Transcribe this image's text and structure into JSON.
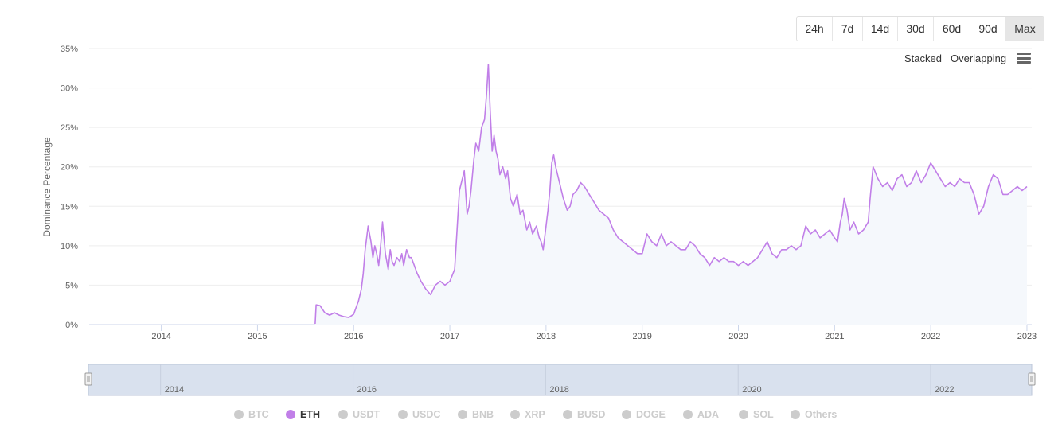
{
  "range_buttons": [
    "24h",
    "7d",
    "14d",
    "30d",
    "60d",
    "90d",
    "Max"
  ],
  "active_range": "Max",
  "mode_options": {
    "stacked": "Stacked",
    "overlapping": "Overlapping"
  },
  "menu_icon": "hamburger-menu-icon",
  "colors": {
    "eth": "#c17fe8",
    "area_fill": "#f5f8fc",
    "grid": "#eeeeee",
    "navigator": "#d9e1ee",
    "legend_off": "#cccccc"
  },
  "legend": [
    {
      "label": "BTC",
      "active": false
    },
    {
      "label": "ETH",
      "active": true
    },
    {
      "label": "USDT",
      "active": false
    },
    {
      "label": "USDC",
      "active": false
    },
    {
      "label": "BNB",
      "active": false
    },
    {
      "label": "XRP",
      "active": false
    },
    {
      "label": "BUSD",
      "active": false
    },
    {
      "label": "DOGE",
      "active": false
    },
    {
      "label": "ADA",
      "active": false
    },
    {
      "label": "SOL",
      "active": false
    },
    {
      "label": "Others",
      "active": false
    }
  ],
  "chart_data": {
    "type": "area",
    "title": "",
    "xlabel": "",
    "ylabel": "Dominance Percentage",
    "ylim": [
      0,
      35
    ],
    "y_ticks": [
      0,
      5,
      10,
      15,
      20,
      25,
      30,
      35
    ],
    "y_tick_labels": [
      "0%",
      "5%",
      "10%",
      "15%",
      "20%",
      "25%",
      "30%",
      "35%"
    ],
    "xlim": [
      2013.25,
      2023.05
    ],
    "x_ticks": [
      2014,
      2015,
      2016,
      2017,
      2018,
      2019,
      2020,
      2021,
      2022,
      2023
    ],
    "x_tick_labels": [
      "2014",
      "2015",
      "2016",
      "2017",
      "2018",
      "2019",
      "2020",
      "2021",
      "2022",
      "2023"
    ],
    "grid": true,
    "navigator_labels": [
      {
        "x": 2014,
        "label": "2014"
      },
      {
        "x": 2016,
        "label": "2016"
      },
      {
        "x": 2018,
        "label": "2018"
      },
      {
        "x": 2020,
        "label": "2020"
      },
      {
        "x": 2022,
        "label": "2022"
      }
    ],
    "series": [
      {
        "name": "ETH",
        "x": [
          2015.6,
          2015.61,
          2015.65,
          2015.7,
          2015.75,
          2015.8,
          2015.85,
          2015.9,
          2015.95,
          2016.0,
          2016.05,
          2016.08,
          2016.1,
          2016.12,
          2016.15,
          2016.18,
          2016.2,
          2016.22,
          2016.24,
          2016.26,
          2016.28,
          2016.3,
          2016.33,
          2016.36,
          2016.38,
          2016.4,
          2016.42,
          2016.45,
          2016.48,
          2016.5,
          2016.52,
          2016.55,
          2016.58,
          2016.6,
          2016.63,
          2016.66,
          2016.7,
          2016.75,
          2016.8,
          2016.85,
          2016.9,
          2016.95,
          2017.0,
          2017.05,
          2017.1,
          2017.15,
          2017.18,
          2017.2,
          2017.22,
          2017.25,
          2017.27,
          2017.3,
          2017.33,
          2017.36,
          2017.38,
          2017.4,
          2017.42,
          2017.44,
          2017.46,
          2017.48,
          2017.5,
          2017.52,
          2017.55,
          2017.58,
          2017.6,
          2017.63,
          2017.66,
          2017.7,
          2017.73,
          2017.76,
          2017.8,
          2017.83,
          2017.86,
          2017.9,
          2017.93,
          2017.95,
          2017.97,
          2018.0,
          2018.02,
          2018.04,
          2018.06,
          2018.08,
          2018.1,
          2018.12,
          2018.15,
          2018.18,
          2018.22,
          2018.25,
          2018.28,
          2018.32,
          2018.36,
          2018.4,
          2018.45,
          2018.5,
          2018.55,
          2018.6,
          2018.65,
          2018.7,
          2018.75,
          2018.8,
          2018.85,
          2018.9,
          2018.95,
          2019.0,
          2019.05,
          2019.1,
          2019.15,
          2019.2,
          2019.25,
          2019.3,
          2019.35,
          2019.4,
          2019.45,
          2019.5,
          2019.55,
          2019.6,
          2019.65,
          2019.7,
          2019.75,
          2019.8,
          2019.85,
          2019.9,
          2019.95,
          2020.0,
          2020.05,
          2020.1,
          2020.15,
          2020.2,
          2020.25,
          2020.3,
          2020.35,
          2020.4,
          2020.45,
          2020.5,
          2020.55,
          2020.6,
          2020.65,
          2020.7,
          2020.75,
          2020.8,
          2020.85,
          2020.9,
          2020.95,
          2021.0,
          2021.03,
          2021.06,
          2021.08,
          2021.1,
          2021.13,
          2021.16,
          2021.2,
          2021.25,
          2021.3,
          2021.35,
          2021.37,
          2021.4,
          2021.45,
          2021.5,
          2021.55,
          2021.6,
          2021.65,
          2021.7,
          2021.75,
          2021.8,
          2021.85,
          2021.9,
          2021.95,
          2022.0,
          2022.05,
          2022.1,
          2022.15,
          2022.2,
          2022.25,
          2022.3,
          2022.35,
          2022.4,
          2022.45,
          2022.5,
          2022.55,
          2022.6,
          2022.65,
          2022.7,
          2022.75,
          2022.8,
          2022.85,
          2022.9,
          2022.95,
          2023.0
        ],
        "y": [
          0.1,
          2.5,
          2.4,
          1.5,
          1.2,
          1.5,
          1.2,
          1.0,
          0.9,
          1.3,
          3.0,
          4.5,
          6.5,
          9.5,
          12.5,
          10.5,
          8.5,
          10.0,
          9.0,
          7.5,
          10.0,
          13.0,
          9.0,
          7.0,
          9.5,
          8.0,
          7.5,
          8.5,
          8.0,
          9.0,
          7.5,
          9.5,
          8.5,
          8.5,
          7.5,
          6.5,
          5.5,
          4.5,
          3.8,
          5.0,
          5.5,
          5.0,
          5.5,
          7.0,
          17.0,
          19.5,
          14.0,
          15.0,
          17.0,
          21.0,
          23.0,
          22.0,
          25.0,
          26.0,
          29.0,
          33.0,
          27.0,
          22.0,
          24.0,
          22.0,
          21.0,
          19.0,
          20.0,
          18.5,
          19.5,
          16.0,
          15.0,
          16.5,
          14.0,
          14.5,
          12.0,
          13.0,
          11.5,
          12.5,
          11.0,
          10.5,
          9.5,
          12.5,
          14.5,
          17.0,
          20.5,
          21.5,
          20.0,
          19.0,
          17.5,
          16.0,
          14.5,
          15.0,
          16.5,
          17.0,
          18.0,
          17.5,
          16.5,
          15.5,
          14.5,
          14.0,
          13.5,
          12.0,
          11.0,
          10.5,
          10.0,
          9.5,
          9.0,
          9.0,
          11.5,
          10.5,
          10.0,
          11.5,
          10.0,
          10.5,
          10.0,
          9.5,
          9.5,
          10.5,
          10.0,
          9.0,
          8.5,
          7.5,
          8.5,
          8.0,
          8.5,
          8.0,
          8.0,
          7.5,
          8.0,
          7.5,
          8.0,
          8.5,
          9.5,
          10.5,
          9.0,
          8.5,
          9.5,
          9.5,
          10.0,
          9.5,
          10.0,
          12.5,
          11.5,
          12.0,
          11.0,
          11.5,
          12.0,
          11.0,
          10.5,
          13.0,
          14.0,
          16.0,
          14.5,
          12.0,
          13.0,
          11.5,
          12.0,
          13.0,
          16.0,
          20.0,
          18.5,
          17.5,
          18.0,
          17.0,
          18.5,
          19.0,
          17.5,
          18.0,
          19.5,
          18.0,
          19.0,
          20.5,
          19.5,
          18.5,
          17.5,
          18.0,
          17.5,
          18.5,
          18.0,
          18.0,
          16.5,
          14.0,
          15.0,
          17.5,
          19.0,
          18.5,
          16.5,
          16.5,
          17.0,
          17.5,
          17.0,
          17.5
        ]
      }
    ]
  }
}
